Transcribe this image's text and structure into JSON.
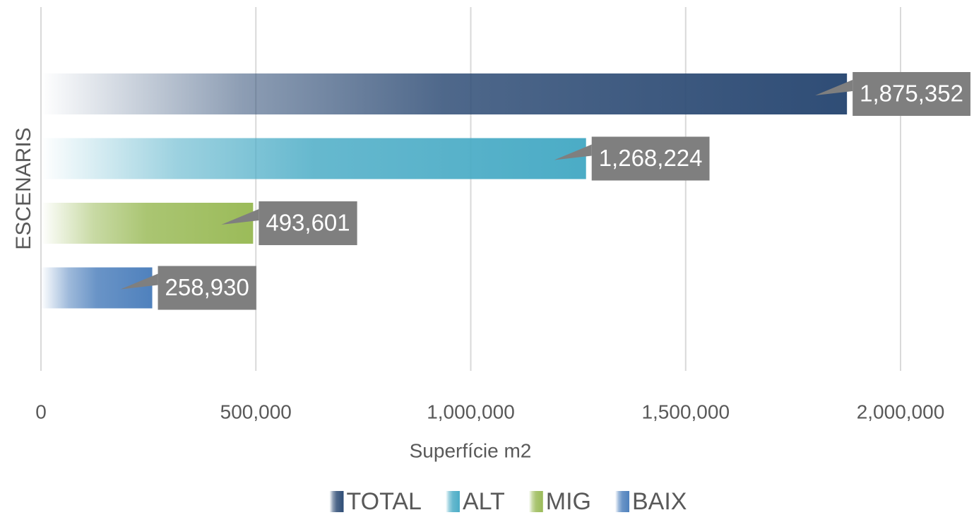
{
  "chart_data": {
    "type": "bar",
    "orientation": "horizontal",
    "categories": [
      null
    ],
    "series": [
      {
        "name": "TOTAL",
        "color": "#2f4d76",
        "values": [
          1875352
        ],
        "value_labels": [
          "1,875,352"
        ]
      },
      {
        "name": "ALT",
        "color": "#4bacc6",
        "values": [
          1268224
        ],
        "value_labels": [
          "1,268,224"
        ]
      },
      {
        "name": "MIG",
        "color": "#9bbb59",
        "values": [
          493601
        ],
        "value_labels": [
          "493,601"
        ]
      },
      {
        "name": "BAIX",
        "color": "#4f81bd",
        "values": [
          258930
        ],
        "value_labels": [
          "258,930"
        ]
      }
    ],
    "xlabel": "Superfície m2",
    "ylabel": "ESCENARIS",
    "xlim": [
      0,
      2000000
    ],
    "xticks": [
      0,
      {
        "value": 500000,
        "label": "500,000"
      },
      {
        "value": 1000000,
        "label": "1,000,000"
      },
      {
        "value": 1500000,
        "label": "1,500,000"
      },
      {
        "value": 2000000,
        "label": "2,000,000"
      }
    ],
    "grid": true,
    "legend": "bottom"
  }
}
